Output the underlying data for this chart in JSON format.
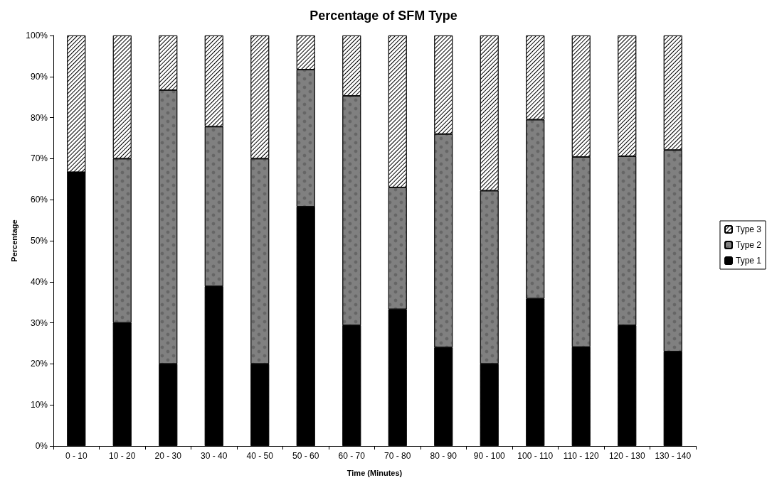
{
  "chart_data": {
    "type": "bar",
    "stacked": true,
    "title": "Percentage of SFM Type",
    "xlabel": "Time (Minutes)",
    "ylabel": "Percentage",
    "categories": [
      "0 - 10",
      "10 - 20",
      "20 - 30",
      "30 - 40",
      "40 - 50",
      "50 - 60",
      "60 - 70",
      "70 - 80",
      "80 - 90",
      "90 - 100",
      "100 - 110",
      "110 - 120",
      "120 - 130",
      "130 - 140"
    ],
    "series": [
      {
        "name": "Type 1",
        "color": "#000000",
        "values": [
          66.7,
          30,
          20,
          38.9,
          20,
          58.3,
          29.4,
          33.3,
          24,
          20,
          35.9,
          24.1,
          29.4,
          23
        ]
      },
      {
        "name": "Type 2",
        "color": "#808080",
        "values": [
          0,
          40,
          66.7,
          38.9,
          50,
          33.4,
          55.9,
          29.7,
          52,
          42.2,
          43.6,
          46.3,
          41.2,
          49.1
        ]
      },
      {
        "name": "Type 3",
        "color": "#ffffff",
        "values": [
          33.3,
          30,
          13.3,
          22.2,
          30,
          8.3,
          14.7,
          37,
          24,
          37.8,
          20.5,
          29.6,
          29.4,
          27.9
        ]
      }
    ],
    "ylim": [
      0,
      100
    ],
    "yticks": [
      {
        "value": 0,
        "label": "0%"
      },
      {
        "value": 10,
        "label": "10%"
      },
      {
        "value": 20,
        "label": "20%"
      },
      {
        "value": 30,
        "label": "30%"
      },
      {
        "value": 40,
        "label": "40%"
      },
      {
        "value": 50,
        "label": "50%"
      },
      {
        "value": 60,
        "label": "60%"
      },
      {
        "value": 70,
        "label": "70%"
      },
      {
        "value": 80,
        "label": "80%"
      },
      {
        "value": 90,
        "label": "90%"
      },
      {
        "value": 100,
        "label": "100%"
      }
    ],
    "legend": "right"
  }
}
